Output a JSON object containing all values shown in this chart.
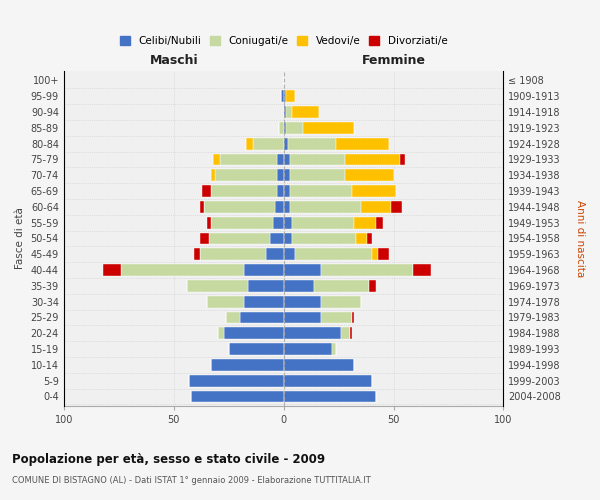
{
  "age_groups": [
    "0-4",
    "5-9",
    "10-14",
    "15-19",
    "20-24",
    "25-29",
    "30-34",
    "35-39",
    "40-44",
    "45-49",
    "50-54",
    "55-59",
    "60-64",
    "65-69",
    "70-74",
    "75-79",
    "80-84",
    "85-89",
    "90-94",
    "95-99",
    "100+"
  ],
  "birth_years": [
    "2004-2008",
    "1999-2003",
    "1994-1998",
    "1989-1993",
    "1984-1988",
    "1979-1983",
    "1974-1978",
    "1969-1973",
    "1964-1968",
    "1959-1963",
    "1954-1958",
    "1949-1953",
    "1944-1948",
    "1939-1943",
    "1934-1938",
    "1929-1933",
    "1924-1928",
    "1919-1923",
    "1914-1918",
    "1909-1913",
    "≤ 1908"
  ],
  "colors": {
    "celibi": "#4472c4",
    "coniugati": "#c5d9a0",
    "vedovi": "#ffc000",
    "divorziati": "#cc0000"
  },
  "maschi": {
    "celibi": [
      42,
      43,
      33,
      25,
      27,
      20,
      18,
      16,
      18,
      8,
      6,
      5,
      4,
      3,
      3,
      3,
      0,
      0,
      0,
      1,
      0
    ],
    "coniugati": [
      0,
      0,
      0,
      0,
      3,
      6,
      17,
      28,
      56,
      30,
      28,
      28,
      32,
      30,
      28,
      26,
      14,
      2,
      0,
      0,
      0
    ],
    "vedovi": [
      0,
      0,
      0,
      0,
      0,
      0,
      0,
      0,
      0,
      0,
      0,
      0,
      0,
      0,
      2,
      3,
      3,
      0,
      0,
      0,
      0
    ],
    "divorziati": [
      0,
      0,
      0,
      0,
      0,
      0,
      0,
      0,
      8,
      3,
      4,
      2,
      2,
      4,
      0,
      0,
      0,
      0,
      0,
      0,
      0
    ]
  },
  "femmine": {
    "celibi": [
      42,
      40,
      32,
      22,
      26,
      17,
      17,
      14,
      17,
      5,
      4,
      4,
      3,
      3,
      3,
      3,
      2,
      1,
      1,
      1,
      0
    ],
    "coniugati": [
      0,
      0,
      0,
      2,
      4,
      14,
      18,
      25,
      42,
      35,
      29,
      28,
      32,
      28,
      25,
      25,
      22,
      8,
      3,
      0,
      0
    ],
    "vedovi": [
      0,
      0,
      0,
      0,
      0,
      0,
      0,
      0,
      0,
      3,
      5,
      10,
      14,
      20,
      22,
      25,
      24,
      23,
      12,
      4,
      0
    ],
    "divorziati": [
      0,
      0,
      0,
      0,
      1,
      1,
      0,
      3,
      8,
      5,
      2,
      3,
      5,
      0,
      0,
      2,
      0,
      0,
      0,
      0,
      0
    ]
  },
  "title": "Popolazione per età, sesso e stato civile - 2009",
  "subtitle": "COMUNE DI BISTAGNO (AL) - Dati ISTAT 1° gennaio 2009 - Elaborazione TUTTITALIA.IT",
  "xlabel_left": "Maschi",
  "xlabel_right": "Femmine",
  "ylabel_left": "Fasce di età",
  "ylabel_right": "Anni di nascita",
  "xlim": 100,
  "legend_labels": [
    "Celibi/Nubili",
    "Coniugati/e",
    "Vedovi/e",
    "Divorziati/e"
  ],
  "background_color": "#f5f5f5",
  "plot_bg": "#f0f0f0",
  "grid_color": "#cccccc"
}
